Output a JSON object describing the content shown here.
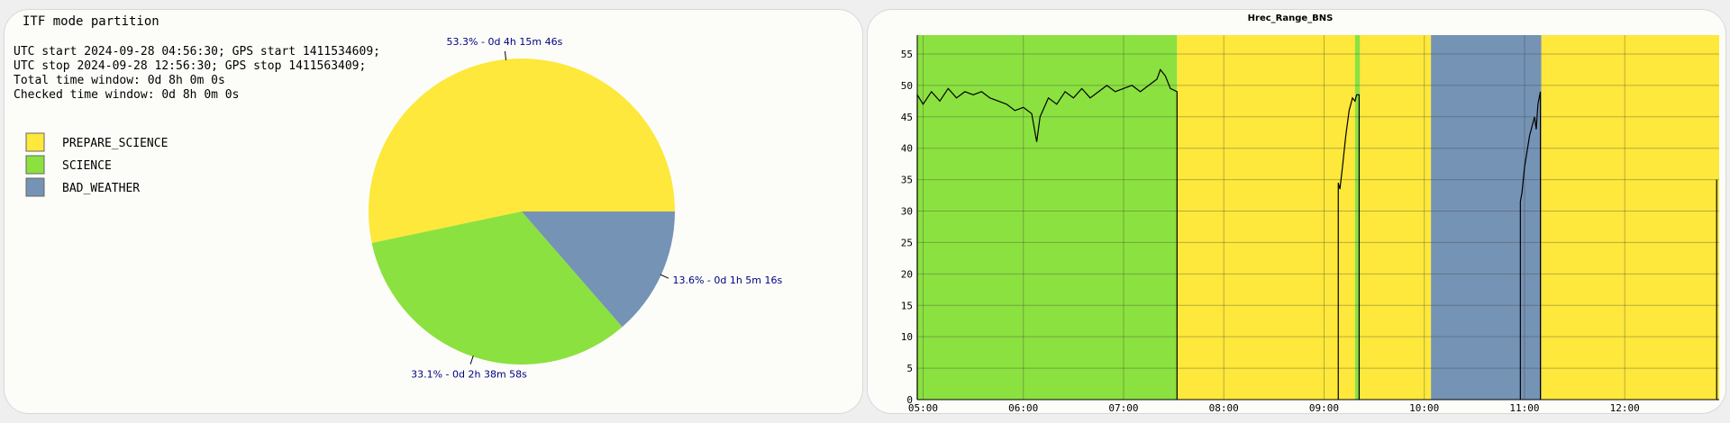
{
  "colors": {
    "PREPARE_SCIENCE": "#fde83b",
    "SCIENCE": "#8be13f",
    "BAD_WEATHER": "#7593b5",
    "label": "#00007f",
    "line": "#000000"
  },
  "left": {
    "title": "ITF mode partition",
    "info": [
      "UTC start 2024-09-28 04:56:30; GPS start 1411534609;",
      "UTC stop 2024-09-28 12:56:30; GPS stop 1411563409;",
      "Total time window: 0d 8h 0m 0s",
      "Checked time window: 0d 8h 0m 0s"
    ],
    "legend": [
      "PREPARE_SCIENCE",
      "SCIENCE",
      "BAD_WEATHER"
    ]
  },
  "chart_data": [
    {
      "type": "pie",
      "title": "ITF mode partition",
      "slices": [
        {
          "name": "PREPARE_SCIENCE",
          "percent": 53.3,
          "label": "53.3% - 0d 4h 15m 46s"
        },
        {
          "name": "SCIENCE",
          "percent": 33.1,
          "label": "33.1% - 0d 2h 38m 58s"
        },
        {
          "name": "BAD_WEATHER",
          "percent": 13.6,
          "label": "13.6% - 0d 1h 5m 16s"
        }
      ]
    },
    {
      "type": "line",
      "title": "Hrec_Range_BNS",
      "xlim": [
        "04:56:30",
        "12:56:30"
      ],
      "ylim": [
        0,
        58
      ],
      "x_ticks": [
        "05:00",
        "06:00",
        "07:00",
        "08:00",
        "09:00",
        "10:00",
        "11:00",
        "12:00"
      ],
      "y_ticks": [
        0,
        5,
        10,
        15,
        20,
        25,
        30,
        35,
        40,
        45,
        50,
        55
      ],
      "grid": true,
      "mode_bands": [
        {
          "mode": "SCIENCE",
          "start": "04:56:30",
          "end": "07:32:00"
        },
        {
          "mode": "PREPARE_SCIENCE",
          "start": "07:32:00",
          "end": "09:18:30"
        },
        {
          "mode": "SCIENCE",
          "start": "09:18:30",
          "end": "09:21:30"
        },
        {
          "mode": "PREPARE_SCIENCE",
          "start": "09:21:30",
          "end": "10:04:00"
        },
        {
          "mode": "BAD_WEATHER",
          "start": "10:04:00",
          "end": "11:10:00"
        },
        {
          "mode": "PREPARE_SCIENCE",
          "start": "11:10:00",
          "end": "12:56:30"
        }
      ],
      "series": [
        {
          "name": "",
          "segments": [
            [
              [
                "04:56:30",
                48.5
              ],
              [
                "05:00",
                47
              ],
              [
                "05:05",
                49
              ],
              [
                "05:10",
                47.5
              ],
              [
                "05:15",
                49.5
              ],
              [
                "05:20",
                48
              ],
              [
                "05:25",
                49
              ],
              [
                "05:30",
                48.5
              ],
              [
                "05:35",
                49
              ],
              [
                "05:40",
                48
              ],
              [
                "05:45",
                47.5
              ],
              [
                "05:50",
                47
              ],
              [
                "05:55",
                46
              ],
              [
                "06:00",
                46.5
              ],
              [
                "06:05",
                45.5
              ],
              [
                "06:08",
                41
              ],
              [
                "06:10",
                45
              ],
              [
                "06:15",
                48
              ],
              [
                "06:20",
                47
              ],
              [
                "06:25",
                49
              ],
              [
                "06:30",
                48
              ],
              [
                "06:35",
                49.5
              ],
              [
                "06:40",
                48
              ],
              [
                "06:45",
                49
              ],
              [
                "06:50",
                50
              ],
              [
                "06:55",
                49
              ],
              [
                "07:00",
                49.5
              ],
              [
                "07:05",
                50
              ],
              [
                "07:10",
                49
              ],
              [
                "07:15",
                50
              ],
              [
                "07:20",
                51
              ],
              [
                "07:22",
                52.5
              ],
              [
                "07:25",
                51.5
              ],
              [
                "07:28",
                49.5
              ],
              [
                "07:32",
                49
              ]
            ],
            [
              [
                "09:08:30",
                34.5
              ],
              [
                "09:09:30",
                33.5
              ],
              [
                "09:11",
                37
              ],
              [
                "09:13",
                42
              ],
              [
                "09:15",
                46
              ],
              [
                "09:17",
                48
              ],
              [
                "09:18:30",
                47.5
              ],
              [
                "09:19:30",
                48.5
              ],
              [
                "09:21",
                48.5
              ]
            ],
            [
              [
                "10:57:30",
                31.5
              ],
              [
                "10:58:30",
                33
              ],
              [
                "11:00",
                37
              ],
              [
                "11:03",
                42
              ],
              [
                "11:06",
                45
              ],
              [
                "11:07",
                43
              ],
              [
                "11:08",
                47
              ],
              [
                "11:09:30",
                49
              ]
            ],
            [
              [
                "12:55",
                35
              ]
            ]
          ]
        }
      ]
    }
  ]
}
